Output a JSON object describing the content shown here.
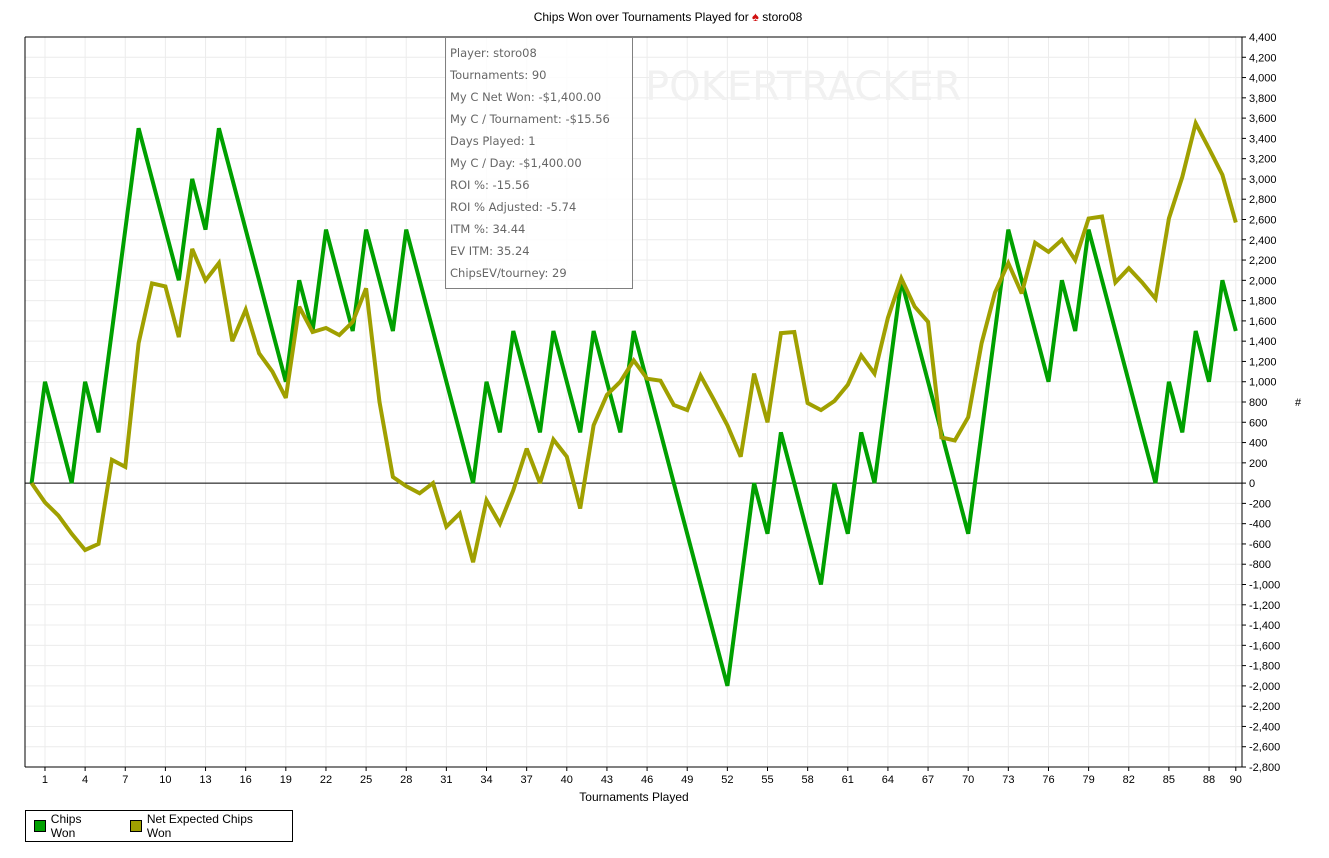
{
  "title": {
    "prefix": "Chips Won over Tournaments Played for",
    "player": "storo08"
  },
  "tooltip": [
    "Player: storo08",
    "Tournaments: 90",
    "My C Net Won: -$1,400.00",
    "My C / Tournament: -$15.56",
    "Days Played: 1",
    "My C / Day: -$1,400.00",
    "ROI %: -15.56",
    "ROI % Adjusted: -5.74",
    "ITM %: 34.44",
    "EV ITM: 35.24",
    "ChipsEV/tourney: 29"
  ],
  "watermark": "POKERTRACKER",
  "colors": {
    "chips_won": "#00a000",
    "net_expected": "#a0a000",
    "grid": "#ececec"
  },
  "chart_data": {
    "type": "line",
    "title": "Chips Won over Tournaments Played for storo08",
    "xlabel": "Tournaments Played",
    "ylabel": "#",
    "xlim": [
      0,
      90
    ],
    "ylim": [
      -2800,
      4400
    ],
    "ytick_step": 200,
    "xticks": [
      1,
      4,
      7,
      10,
      13,
      16,
      19,
      22,
      25,
      28,
      31,
      34,
      37,
      40,
      43,
      46,
      49,
      52,
      55,
      58,
      61,
      64,
      67,
      70,
      73,
      76,
      79,
      82,
      85,
      88,
      90
    ],
    "grid": true,
    "legend_position": "bottom-left",
    "x": [
      0,
      1,
      2,
      3,
      4,
      5,
      6,
      7,
      8,
      9,
      10,
      11,
      12,
      13,
      14,
      15,
      16,
      17,
      18,
      19,
      20,
      21,
      22,
      23,
      24,
      25,
      26,
      27,
      28,
      29,
      30,
      31,
      32,
      33,
      34,
      35,
      36,
      37,
      38,
      39,
      40,
      41,
      42,
      43,
      44,
      45,
      46,
      47,
      48,
      49,
      50,
      51,
      52,
      53,
      54,
      55,
      56,
      57,
      58,
      59,
      60,
      61,
      62,
      63,
      64,
      65,
      66,
      67,
      68,
      69,
      70,
      71,
      72,
      73,
      74,
      75,
      76,
      77,
      78,
      79,
      80,
      81,
      82,
      83,
      84,
      85,
      86,
      87,
      88,
      89,
      90
    ],
    "series": [
      {
        "name": "Chips Won",
        "values": [
          0,
          1000,
          500,
          0,
          1000,
          500,
          1500,
          2500,
          3500,
          3000,
          2500,
          2000,
          3000,
          2500,
          3500,
          3000,
          2500,
          2000,
          1500,
          1000,
          2000,
          1500,
          2500,
          2000,
          1500,
          2500,
          2000,
          1500,
          2500,
          2000,
          1500,
          1000,
          500,
          0,
          1000,
          500,
          1500,
          1000,
          500,
          1500,
          1000,
          500,
          1500,
          1000,
          500,
          1500,
          1000,
          500,
          0,
          -500,
          -1000,
          -1500,
          -2000,
          -1000,
          0,
          -500,
          500,
          0,
          -500,
          -1000,
          0,
          -500,
          500,
          0,
          1000,
          2000,
          1500,
          1000,
          500,
          0,
          -500,
          500,
          1500,
          2500,
          2000,
          1500,
          1000,
          2000,
          1500,
          2500,
          2000,
          1500,
          1000,
          500,
          0,
          1000,
          500,
          1500,
          1000,
          2000,
          1500
        ]
      },
      {
        "name": "Net Expected Chips Won",
        "values": [
          0,
          -190,
          -320,
          -500,
          -660,
          -600,
          230,
          160,
          1380,
          1970,
          1940,
          1440,
          2310,
          2000,
          2170,
          1400,
          1710,
          1280,
          1100,
          840,
          1740,
          1490,
          1530,
          1460,
          1590,
          1920,
          800,
          60,
          -30,
          -100,
          0,
          -430,
          -300,
          -780,
          -170,
          -400,
          -70,
          340,
          0,
          430,
          260,
          -250,
          570,
          870,
          1000,
          1210,
          1030,
          1010,
          770,
          720,
          1060,
          820,
          570,
          260,
          1080,
          600,
          1480,
          1490,
          790,
          720,
          810,
          970,
          1260,
          1080,
          1630,
          2020,
          1740,
          1590,
          450,
          420,
          650,
          1380,
          1880,
          2170,
          1870,
          2370,
          2280,
          2400,
          2200,
          2610,
          2630,
          1980,
          2120,
          1980,
          1820,
          2610,
          3020,
          3550,
          3300,
          3040,
          2570
        ]
      }
    ]
  }
}
